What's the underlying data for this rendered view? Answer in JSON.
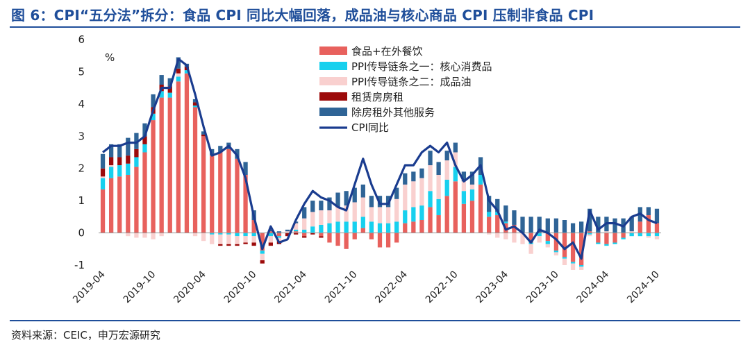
{
  "header": {
    "title": "图 6：CPI“五分法”拆分：食品 CPI 同比大幅回落，成品油与核心商品 CPI 压制非食品 CPI"
  },
  "footer": {
    "source": "资料来源：CEIC，申万宏源研究"
  },
  "chart_data": {
    "type": "bar",
    "stacked": true,
    "unit": "%",
    "ylim": [
      -1,
      6
    ],
    "yticks": [
      -1,
      0,
      1,
      2,
      3,
      4,
      5,
      6
    ],
    "x_tick_labels": [
      "2019-04",
      "2019-10",
      "2020-04",
      "2020-10",
      "2021-04",
      "2021-10",
      "2022-04",
      "2022-10",
      "2023-04",
      "2023-10",
      "2024-04",
      "2024-10"
    ],
    "x_tick_every": 6,
    "legend_position": "top-center",
    "categories": [
      "2019-04",
      "2019-05",
      "2019-06",
      "2019-07",
      "2019-08",
      "2019-09",
      "2019-10",
      "2019-11",
      "2019-12",
      "2020-01",
      "2020-02",
      "2020-03",
      "2020-04",
      "2020-05",
      "2020-06",
      "2020-07",
      "2020-08",
      "2020-09",
      "2020-10",
      "2020-11",
      "2020-12",
      "2021-01",
      "2021-02",
      "2021-03",
      "2021-04",
      "2021-05",
      "2021-06",
      "2021-07",
      "2021-08",
      "2021-09",
      "2021-10",
      "2021-11",
      "2021-12",
      "2022-01",
      "2022-02",
      "2022-03",
      "2022-04",
      "2022-05",
      "2022-06",
      "2022-07",
      "2022-08",
      "2022-09",
      "2022-10",
      "2022-11",
      "2022-12",
      "2023-01",
      "2023-02",
      "2023-03",
      "2023-04",
      "2023-05",
      "2023-06",
      "2023-07",
      "2023-08",
      "2023-09",
      "2023-10",
      "2023-11",
      "2023-12",
      "2024-01",
      "2024-02",
      "2024-03",
      "2024-04",
      "2024-05",
      "2024-06",
      "2024-07",
      "2024-08",
      "2024-09",
      "2024-10"
    ],
    "series": [
      {
        "name": "食品+在外餐饮",
        "type": "bar",
        "color": "#e8615d",
        "values": [
          1.35,
          1.7,
          1.75,
          1.8,
          2.05,
          2.5,
          3.5,
          4.2,
          4.2,
          4.7,
          4.95,
          3.9,
          3.0,
          2.4,
          2.5,
          2.6,
          2.3,
          1.8,
          0.4,
          -0.55,
          0.05,
          -0.1,
          0.0,
          0.05,
          -0.1,
          0.0,
          -0.1,
          -0.3,
          -0.4,
          -0.5,
          -0.2,
          0.15,
          -0.2,
          -0.45,
          -0.45,
          -0.3,
          0.3,
          0.35,
          0.4,
          0.8,
          0.55,
          1.15,
          1.6,
          0.9,
          1.0,
          1.5,
          0.5,
          0.55,
          0.3,
          0.25,
          0.0,
          -0.3,
          0.0,
          -0.25,
          -0.55,
          -0.75,
          -0.9,
          -1.0,
          0.05,
          -0.3,
          -0.35,
          -0.3,
          -0.15,
          0.0,
          0.35,
          0.55,
          0.3
        ]
      },
      {
        "name": "PPI传导链条之一：核心消费品",
        "type": "bar",
        "color": "#17d0ee",
        "values": [
          0.35,
          0.35,
          0.35,
          0.35,
          0.3,
          0.25,
          0.2,
          0.2,
          0.15,
          0.15,
          0.1,
          0.05,
          0.0,
          -0.05,
          -0.05,
          -0.05,
          -0.1,
          -0.1,
          -0.1,
          -0.1,
          -0.1,
          -0.05,
          0.0,
          0.05,
          0.1,
          0.2,
          0.25,
          0.3,
          0.35,
          0.35,
          0.35,
          0.35,
          0.35,
          0.3,
          0.3,
          0.35,
          0.4,
          0.45,
          0.45,
          0.5,
          0.5,
          0.5,
          0.45,
          0.4,
          0.35,
          0.3,
          0.15,
          0.1,
          0.05,
          0.0,
          0.0,
          -0.05,
          -0.1,
          -0.1,
          -0.05,
          -0.05,
          -0.05,
          -0.05,
          -0.05,
          -0.05,
          -0.05,
          -0.05,
          -0.05,
          -0.1,
          -0.1,
          -0.1,
          -0.1
        ]
      },
      {
        "name": "PPI传导链条之二：成品油",
        "type": "bar",
        "color": "#f9d0cf",
        "values": [
          0.05,
          0.05,
          0.0,
          -0.1,
          -0.15,
          -0.15,
          -0.2,
          -0.1,
          0.0,
          0.1,
          0.0,
          -0.1,
          -0.25,
          -0.3,
          -0.3,
          -0.3,
          -0.25,
          -0.2,
          -0.2,
          -0.2,
          -0.2,
          -0.1,
          0.05,
          0.2,
          0.35,
          0.45,
          0.45,
          0.4,
          0.45,
          0.5,
          0.6,
          0.6,
          0.45,
          0.5,
          0.5,
          0.7,
          0.8,
          0.8,
          0.85,
          0.8,
          0.75,
          0.6,
          0.45,
          0.3,
          0.15,
          0.0,
          -0.05,
          -0.15,
          -0.2,
          -0.3,
          -0.35,
          -0.3,
          -0.2,
          -0.1,
          -0.1,
          -0.2,
          -0.2,
          -0.1,
          -0.05,
          0.0,
          0.05,
          0.0,
          0.0,
          0.05,
          0.0,
          -0.05,
          -0.1
        ]
      },
      {
        "name": "租赁房房租",
        "type": "bar",
        "color": "#9c0a0a",
        "values": [
          0.25,
          0.25,
          0.25,
          0.25,
          0.25,
          0.25,
          0.2,
          0.2,
          0.2,
          0.15,
          0.1,
          0.1,
          0.05,
          0.0,
          -0.05,
          -0.05,
          -0.05,
          -0.05,
          -0.1,
          -0.1,
          -0.1,
          -0.1,
          -0.1,
          -0.05,
          -0.05,
          -0.05,
          -0.05,
          0.0,
          0.0,
          0.0,
          0.0,
          0.0,
          0.0,
          0.0,
          0.0,
          0.0,
          0.0,
          0.0,
          0.0,
          0.0,
          0.0,
          0.0,
          0.0,
          0.0,
          0.0,
          0.0,
          0.0,
          0.0,
          0.0,
          0.0,
          0.0,
          0.0,
          0.0,
          0.0,
          0.0,
          0.0,
          0.0,
          0.0,
          0.0,
          0.0,
          0.0,
          0.0,
          0.0,
          0.0,
          0.0,
          0.0,
          0.0
        ]
      },
      {
        "name": "除房租外其他服务",
        "type": "bar",
        "color": "#2f6496",
        "values": [
          0.45,
          0.4,
          0.4,
          0.55,
          0.5,
          0.4,
          0.4,
          0.3,
          0.25,
          0.35,
          0.1,
          0.1,
          0.1,
          0.2,
          0.2,
          0.2,
          0.3,
          0.4,
          0.3,
          0.0,
          0.05,
          0.05,
          0.05,
          0.05,
          0.35,
          0.35,
          0.3,
          0.4,
          0.45,
          0.45,
          0.45,
          0.4,
          0.35,
          0.35,
          0.35,
          0.35,
          0.35,
          0.3,
          0.3,
          0.45,
          0.4,
          0.3,
          0.3,
          0.3,
          0.4,
          0.55,
          0.5,
          0.4,
          0.5,
          0.45,
          0.5,
          0.5,
          0.5,
          0.45,
          0.45,
          0.4,
          0.3,
          0.35,
          0.7,
          0.5,
          0.45,
          0.45,
          0.45,
          0.45,
          0.45,
          0.25,
          0.45
        ]
      },
      {
        "name": "CPI同比",
        "type": "line",
        "color": "#1a3c8f",
        "values": [
          2.5,
          2.7,
          2.7,
          2.8,
          2.8,
          3.0,
          3.8,
          4.5,
          4.5,
          5.4,
          5.2,
          4.3,
          3.3,
          2.4,
          2.5,
          2.7,
          2.4,
          1.7,
          0.5,
          -0.5,
          0.2,
          -0.3,
          -0.2,
          0.4,
          0.9,
          1.3,
          1.1,
          1.0,
          0.8,
          0.7,
          1.5,
          2.3,
          1.5,
          0.9,
          0.9,
          1.5,
          2.1,
          2.1,
          2.5,
          2.7,
          2.5,
          2.8,
          2.1,
          1.6,
          1.8,
          2.1,
          1.0,
          0.7,
          0.1,
          0.2,
          0.0,
          -0.3,
          0.1,
          0.0,
          -0.2,
          -0.5,
          -0.3,
          -0.8,
          0.7,
          0.1,
          0.3,
          0.3,
          0.2,
          0.5,
          0.6,
          0.4,
          0.3
        ]
      }
    ]
  }
}
